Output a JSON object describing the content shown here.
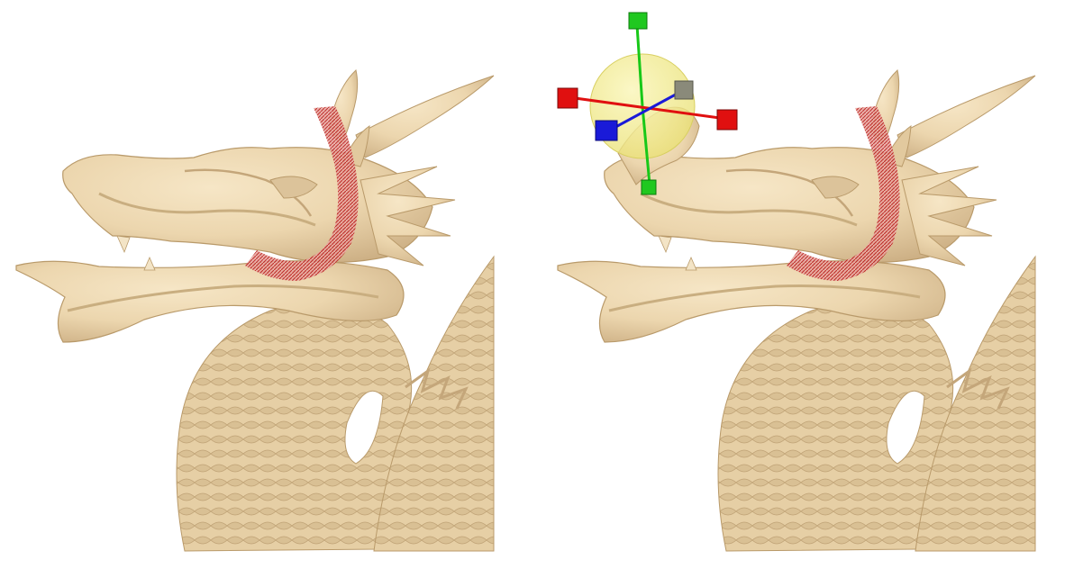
{
  "figure": {
    "panels": [
      {
        "id": "before",
        "shows_gizmo": false
      },
      {
        "id": "after",
        "shows_gizmo": true
      }
    ]
  },
  "colors": {
    "background": "#ffffff",
    "surface": "#ecd6ae",
    "surface_shade": "#c9ae80",
    "surface_dark": "#9e8459",
    "region_highlight": "#d0302f",
    "gizmo_sphere": "#f3ee8a",
    "axis_x": "#e01010",
    "axis_y": "#18c818",
    "axis_z": "#1a1ad8",
    "handle_grey": "#8a8a7a"
  },
  "icons": {
    "translate_gizmo": "transform-gizmo-icon",
    "deform_region": "deformation-region-band"
  }
}
